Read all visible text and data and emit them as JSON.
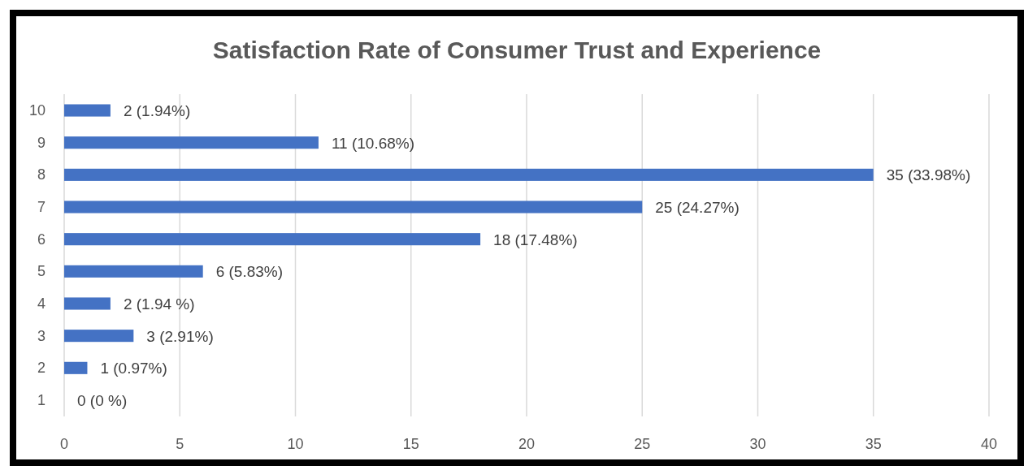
{
  "chart_data": {
    "type": "bar",
    "orientation": "horizontal",
    "title": "Satisfaction Rate of Consumer Trust and Experience",
    "categories": [
      "10",
      "9",
      "8",
      "7",
      "6",
      "5",
      "4",
      "3",
      "2",
      "1"
    ],
    "values": [
      2,
      11,
      35,
      25,
      18,
      6,
      2,
      3,
      1,
      0
    ],
    "value_labels": [
      "2 (1.94%)",
      "11 (10.68%)",
      "35 (33.98%)",
      "25 (24.27%)",
      "18 (17.48%)",
      "6 (5.83%)",
      "2 (1.94 %)",
      "3 (2.91%)",
      "1 (0.97%)",
      "0 (0 %)"
    ],
    "color": "#4472c4",
    "xlim": [
      0,
      40
    ],
    "xticks": [
      0,
      5,
      10,
      15,
      20,
      25,
      30,
      35,
      40
    ],
    "grid": "x"
  }
}
